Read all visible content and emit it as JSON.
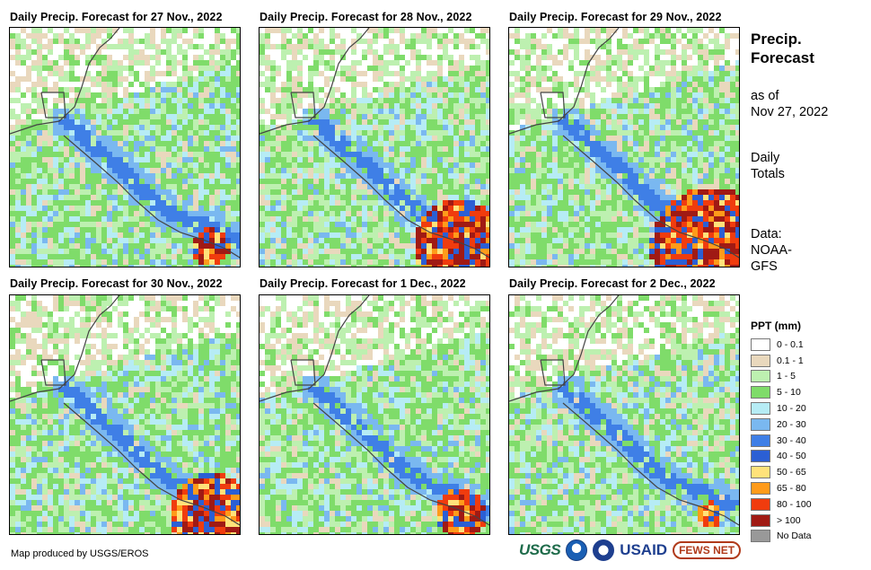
{
  "panels": [
    {
      "title": "Daily Precip. Forecast for 27 Nov., 2022",
      "seed": 11,
      "wet_east": 0.15
    },
    {
      "title": "Daily Precip. Forecast for 28 Nov., 2022",
      "seed": 23,
      "wet_east": 0.6
    },
    {
      "title": "Daily Precip. Forecast for 29 Nov., 2022",
      "seed": 37,
      "wet_east": 0.8
    },
    {
      "title": "Daily Precip. Forecast for 30 Nov., 2022",
      "seed": 41,
      "wet_east": 0.5
    },
    {
      "title": "Daily Precip. Forecast for 1 Dec., 2022",
      "seed": 53,
      "wet_east": 0.25
    },
    {
      "title": "Daily Precip. Forecast for 2 Dec., 2022",
      "seed": 67,
      "wet_east": 0.05
    }
  ],
  "sidebar": {
    "title_line1": "Precip.",
    "title_line2": "Forecast",
    "asof_line1": "as of",
    "asof_line2": "Nov 27, 2022",
    "totals_line1": "Daily",
    "totals_line2": "Totals",
    "data_line1": "Data:",
    "data_line2": "NOAA-",
    "data_line3": "GFS"
  },
  "legend": {
    "title": "PPT (mm)",
    "items": [
      {
        "label": "0 - 0.1",
        "color": "#ffffff"
      },
      {
        "label": "0.1 - 1",
        "color": "#e9d8bd"
      },
      {
        "label": "1 - 5",
        "color": "#bdf0b0"
      },
      {
        "label": "5 - 10",
        "color": "#7fdc6a"
      },
      {
        "label": "10 - 20",
        "color": "#b6ecf5"
      },
      {
        "label": "20 - 30",
        "color": "#7ab8f0"
      },
      {
        "label": "30 - 40",
        "color": "#3f7fe6"
      },
      {
        "label": "40 - 50",
        "color": "#2b5fd4"
      },
      {
        "label": "50 - 65",
        "color": "#ffe27a"
      },
      {
        "label": "65 - 80",
        "color": "#ff9b1a"
      },
      {
        "label": "80 - 100",
        "color": "#f03c0e"
      },
      {
        "label": "> 100",
        "color": "#a01a14"
      },
      {
        "label": "No Data",
        "color": "#999999"
      }
    ]
  },
  "credit": "Map produced by USGS/EROS",
  "logos": {
    "usgs": "USGS",
    "usaid": "USAID",
    "fews": "FEWS NET"
  }
}
